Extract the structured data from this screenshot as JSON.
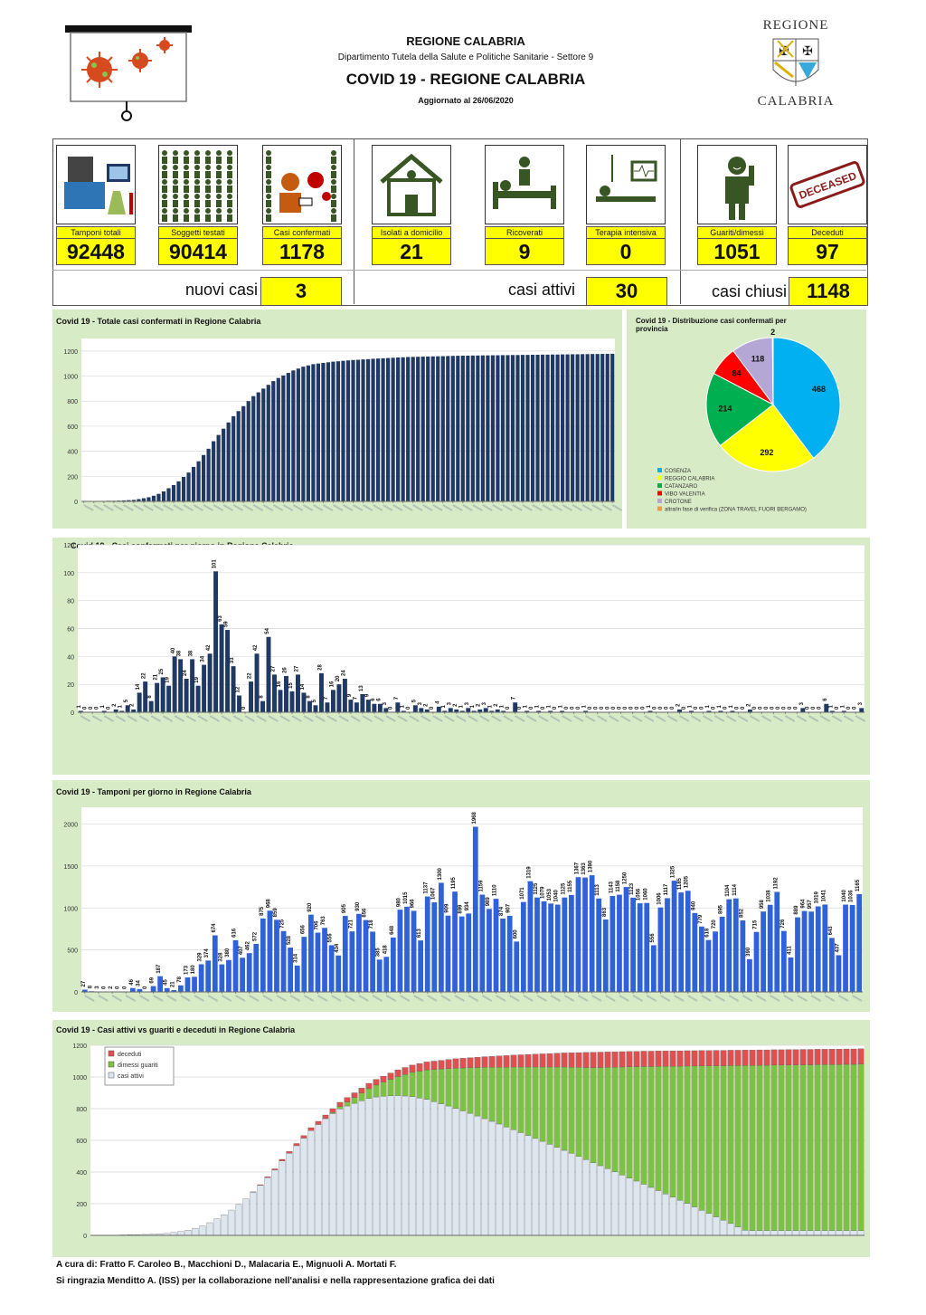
{
  "header": {
    "region": "REGIONE CALABRIA",
    "department": "Dipartimento Tutela della Salute e Politiche Sanitarie - Settore 9",
    "main_title": "COVID 19 - REGIONE CALABRIA",
    "updated": "Aggiornato al  26/06/2020",
    "logo_top": "REGIONE",
    "logo_bottom": "CALABRIA"
  },
  "tiles": [
    {
      "label": "Tamponi totali",
      "value": "92448",
      "icon": "lab-equipment-icon"
    },
    {
      "label": "Soggetti testati",
      "value": "90414",
      "icon": "people-grid-icon"
    },
    {
      "label": "Casi confermati",
      "value": "1178",
      "icon": "virus-person-icon"
    },
    {
      "label": "Isolati a domicilio",
      "value": "21",
      "icon": "house-icon"
    },
    {
      "label": "Ricoverati",
      "value": "9",
      "icon": "hospital-bed-icon"
    },
    {
      "label": "Terapia intensiva",
      "value": "0",
      "icon": "intensive-care-icon"
    },
    {
      "label": "Guariti/dimessi",
      "value": "1051",
      "icon": "recovered-person-icon"
    },
    {
      "label": "Deceduti",
      "value": "97",
      "icon": "deceased-stamp-icon"
    }
  ],
  "deceased_stamp": "DECEASED",
  "summary": [
    {
      "label": "nuovi casi",
      "value": "3"
    },
    {
      "label": "casi attivi",
      "value": "30"
    },
    {
      "label": "casi chiusi",
      "value": "1148"
    }
  ],
  "colors": {
    "navy": "#1f3864",
    "blue": "#2f62d9",
    "panel_bg": "#d8ebc7",
    "yellow": "#ffff00",
    "green": "#7ec242",
    "red": "#e05050",
    "lightblue": "#dce6f1"
  },
  "chart_data": [
    {
      "type": "bar",
      "title": "Covid 19 - Totale casi confermati in Regione Calabria",
      "ylim": [
        0,
        1300
      ],
      "yticks": [
        0,
        200,
        400,
        600,
        800,
        1000,
        1200
      ],
      "values": [
        1,
        1,
        2,
        2,
        3,
        5,
        5,
        6,
        8,
        10,
        12,
        18,
        25,
        33,
        45,
        60,
        80,
        105,
        130,
        160,
        195,
        230,
        275,
        320,
        370,
        420,
        480,
        530,
        580,
        630,
        680,
        720,
        760,
        800,
        840,
        870,
        900,
        930,
        960,
        985,
        1005,
        1025,
        1045,
        1060,
        1075,
        1085,
        1095,
        1100,
        1105,
        1110,
        1115,
        1118,
        1122,
        1125,
        1128,
        1130,
        1133,
        1135,
        1138,
        1140,
        1142,
        1144,
        1146,
        1148,
        1150,
        1152,
        1153,
        1154,
        1155,
        1156,
        1157,
        1158,
        1159,
        1160,
        1161,
        1162,
        1163,
        1163,
        1164,
        1164,
        1165,
        1165,
        1166,
        1166,
        1167,
        1167,
        1168,
        1168,
        1169,
        1169,
        1170,
        1170,
        1171,
        1171,
        1172,
        1172,
        1173,
        1173,
        1174,
        1174,
        1175,
        1175,
        1176,
        1176,
        1177,
        1177,
        1178
      ]
    },
    {
      "type": "pie",
      "title": "Covid 19 - Distribuzione casi confermati per provincia",
      "slices": [
        {
          "name": "COSENZA",
          "value": 468,
          "color": "#00b0f0"
        },
        {
          "name": "REGGIO CALABRIA",
          "value": 292,
          "color": "#ffff00"
        },
        {
          "name": "CATANZARO",
          "value": 214,
          "color": "#00b050"
        },
        {
          "name": "VIBO VALENTIA",
          "value": 84,
          "color": "#ff0000"
        },
        {
          "name": "CROTONE",
          "value": 118,
          "color": "#b4a7d6"
        },
        {
          "name": "altra/in fase di verifica (ZONA TRAVEL FUORI BERGAMO)",
          "value": 2,
          "color": "#f79646"
        }
      ]
    },
    {
      "type": "bar",
      "title": "Covid 19 - Casi confermati per giorno in Regione Calabria",
      "ylim": [
        0,
        120
      ],
      "yticks": [
        0,
        20,
        40,
        60,
        80,
        100,
        120
      ],
      "values": [
        1,
        0,
        0,
        0,
        1,
        0,
        2,
        1,
        5,
        2,
        14,
        22,
        8,
        21,
        25,
        19,
        40,
        38,
        24,
        38,
        19,
        34,
        42,
        101,
        63,
        59,
        33,
        12,
        0,
        22,
        42,
        8,
        54,
        27,
        16,
        26,
        15,
        27,
        14,
        8,
        5,
        28,
        7,
        16,
        20,
        24,
        9,
        7,
        13,
        9,
        6,
        6,
        3,
        0,
        7,
        1,
        0,
        5,
        3,
        2,
        0,
        4,
        1,
        3,
        2,
        1,
        3,
        1,
        2,
        3,
        1,
        2,
        1,
        0,
        7,
        0,
        1,
        0,
        1,
        0,
        1,
        0,
        1,
        0,
        0,
        0,
        1,
        0,
        0,
        0,
        0,
        0,
        0,
        0,
        0,
        0,
        0,
        1,
        0,
        0,
        0,
        0,
        2,
        0,
        1,
        0,
        0,
        1,
        0,
        1,
        0,
        1,
        0,
        0,
        2,
        0,
        0,
        0,
        0,
        0,
        0,
        0,
        0,
        3,
        0,
        0,
        0,
        6,
        1,
        0,
        1,
        0,
        0,
        3
      ]
    },
    {
      "type": "bar",
      "title": "Covid 19 - Tamponi per giorno in Regione Calabria",
      "ylim": [
        0,
        2200
      ],
      "yticks": [
        0,
        500,
        1000,
        1500,
        2000
      ],
      "values": [
        27,
        8,
        3,
        0,
        2,
        0,
        0,
        46,
        34,
        0,
        69,
        187,
        45,
        21,
        78,
        173,
        180,
        329,
        374,
        674,
        328,
        380,
        616,
        407,
        462,
        572,
        875,
        968,
        859,
        725,
        528,
        314,
        656,
        920,
        706,
        763,
        556,
        434,
        905,
        721,
        930,
        856,
        718,
        385,
        418,
        648,
        980,
        1015,
        966,
        613,
        1137,
        1067,
        1300,
        909,
        1195,
        899,
        934,
        1968,
        1159,
        989,
        1110,
        874,
        907,
        600,
        1071,
        1319,
        1125,
        1079,
        1053,
        1040,
        1125,
        1155,
        1367,
        1363,
        1390,
        1113,
        863,
        1143,
        1158,
        1250,
        1123,
        1056,
        1060,
        556,
        1006,
        1117,
        1325,
        1185,
        1205,
        940,
        779,
        618,
        720,
        895,
        1104,
        1114,
        852,
        390,
        715,
        958,
        1038,
        1192,
        726,
        411,
        889,
        964,
        957,
        1019,
        1041,
        643,
        437,
        1040,
        1036,
        1165
      ]
    },
    {
      "type": "bar",
      "stacked": true,
      "title": "Covid 19 - Casi attivi vs guariti e deceduti in Regione Calabria",
      "ylim": [
        0,
        1200
      ],
      "yticks": [
        0,
        200,
        400,
        600,
        800,
        1000,
        1200
      ],
      "series": [
        {
          "name": "casi attivi",
          "color": "#dce6f1"
        },
        {
          "name": "dimessi guariti",
          "color": "#7ec242"
        },
        {
          "name": "deceduti",
          "color": "#e05050"
        }
      ]
    }
  ],
  "footer": {
    "line1": "A cura di: Fratto F. Caroleo B., Macchioni D., Malacaria E., Mignuoli A. Mortati F.",
    "line2": "Si ringrazia Menditto A. (ISS) per la collaborazione nell'analisi e nella rappresentazione grafica dei dati"
  }
}
